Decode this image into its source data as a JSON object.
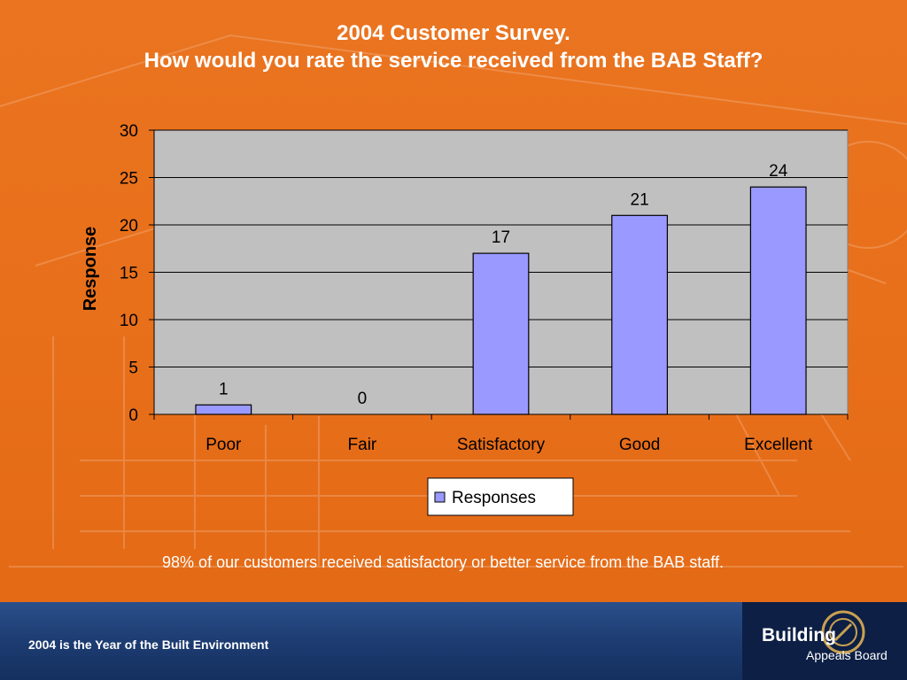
{
  "slide": {
    "title_line1": "2004 Customer Survey.",
    "title_line2": "How would you rate the service received from the BAB Staff?",
    "caption": "98% of our customers received satisfactory or better service from the BAB staff."
  },
  "footer": {
    "tagline": "2004 is the Year of the Built Environment",
    "logo_line1": "Building",
    "logo_line2": "Appeals Board"
  },
  "chart_data": {
    "type": "bar",
    "categories": [
      "Poor",
      "Fair",
      "Satisfactory",
      "Good",
      "Excellent"
    ],
    "series": [
      {
        "name": "Responses",
        "values": [
          1,
          0,
          17,
          21,
          24
        ]
      }
    ],
    "data_labels": [
      "1",
      "0",
      "17",
      "21",
      "24"
    ],
    "ylabel": "Response",
    "xlabel": "",
    "ylim": [
      0,
      30
    ],
    "yticks": [
      0,
      5,
      10,
      15,
      20,
      25,
      30
    ],
    "grid": true,
    "legend": "bottom-center",
    "colors": {
      "bar_fill": "#9999ff",
      "plot_bg": "#c0c0c0",
      "slide_bg": "#e8701b"
    }
  }
}
